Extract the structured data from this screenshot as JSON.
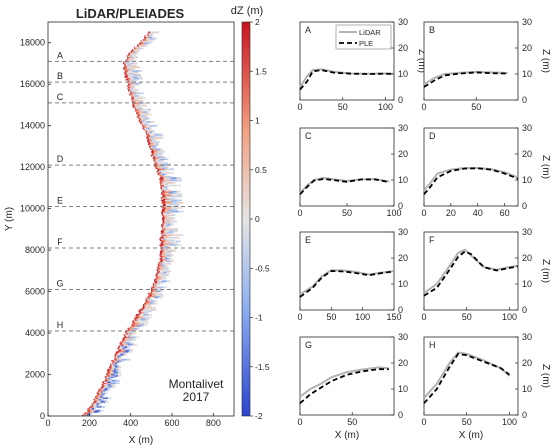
{
  "figure": {
    "title": "LiDAR/PLEIADES",
    "site_label": "Montalivet",
    "year_label": "2017"
  },
  "chart_data": [
    {
      "id": "map",
      "type": "heatmap",
      "title": "LiDAR/PLEIADES",
      "xlabel": "X (m)",
      "ylabel": "Y (m)",
      "xlim": [
        0,
        900
      ],
      "ylim": [
        0,
        19000
      ],
      "xticks": [
        0,
        200,
        400,
        600,
        800
      ],
      "yticks": [
        0,
        2000,
        4000,
        6000,
        8000,
        10000,
        12000,
        14000,
        16000,
        18000
      ],
      "colorbar": {
        "label": "dZ (m)",
        "range": [
          -2,
          2
        ],
        "ticks": [
          -2,
          -1.5,
          -1,
          -0.5,
          0,
          0.5,
          1,
          1.5,
          2
        ],
        "colors": [
          "#2b45cf",
          "#8fb1f0",
          "#e4e4e4",
          "#f2a384",
          "#c9131f"
        ]
      },
      "shoreline_x": [
        [
          0,
          170
        ],
        [
          500,
          210
        ],
        [
          1000,
          235
        ],
        [
          1500,
          260
        ],
        [
          2000,
          285
        ],
        [
          2500,
          305
        ],
        [
          3000,
          330
        ],
        [
          3500,
          350
        ],
        [
          4000,
          375
        ],
        [
          4500,
          410
        ],
        [
          5000,
          440
        ],
        [
          5500,
          470
        ],
        [
          6000,
          495
        ],
        [
          6500,
          515
        ],
        [
          7000,
          530
        ],
        [
          7500,
          540
        ],
        [
          8000,
          545
        ],
        [
          8500,
          545
        ],
        [
          9000,
          550
        ],
        [
          9500,
          550
        ],
        [
          10000,
          552
        ],
        [
          10500,
          552
        ],
        [
          11000,
          548
        ],
        [
          11500,
          540
        ],
        [
          12000,
          520
        ],
        [
          12500,
          505
        ],
        [
          13000,
          490
        ],
        [
          13500,
          475
        ],
        [
          14000,
          455
        ],
        [
          14500,
          430
        ],
        [
          15000,
          410
        ],
        [
          15500,
          395
        ],
        [
          16000,
          385
        ],
        [
          16500,
          370
        ],
        [
          17000,
          365
        ],
        [
          17500,
          395
        ],
        [
          18000,
          445
        ],
        [
          18500,
          485
        ]
      ],
      "profile_lines": [
        {
          "label": "A",
          "y": 17100
        },
        {
          "label": "B",
          "y": 16100
        },
        {
          "label": "C",
          "y": 15100
        },
        {
          "label": "D",
          "y": 12100
        },
        {
          "label": "E",
          "y": 10100
        },
        {
          "label": "F",
          "y": 8100
        },
        {
          "label": "G",
          "y": 6100
        },
        {
          "label": "H",
          "y": 4100
        }
      ]
    },
    {
      "id": "A",
      "type": "line",
      "title": "A",
      "xlabel": "",
      "ylabel": "Z (m)",
      "xlim": [
        0,
        110
      ],
      "ylim": [
        0,
        30
      ],
      "xticks": [
        0,
        50,
        100
      ],
      "yticks": [
        0,
        10,
        20,
        30
      ],
      "legend": "top-right",
      "series": [
        {
          "name": "LiDAR",
          "values": [
            [
              0,
              5
            ],
            [
              8,
              9
            ],
            [
              15,
              11.5
            ],
            [
              25,
              11.8
            ],
            [
              40,
              10.8
            ],
            [
              60,
              10.2
            ],
            [
              80,
              10.1
            ],
            [
              100,
              10.2
            ],
            [
              110,
              10.1
            ]
          ]
        },
        {
          "name": "PLE",
          "values": [
            [
              0,
              4
            ],
            [
              8,
              7
            ],
            [
              15,
              11
            ],
            [
              25,
              11.5
            ],
            [
              40,
              10.5
            ],
            [
              60,
              10.1
            ],
            [
              80,
              10
            ],
            [
              100,
              10.1
            ],
            [
              110,
              10
            ]
          ]
        }
      ]
    },
    {
      "id": "B",
      "type": "line",
      "title": "B",
      "xlabel": "",
      "ylabel": "Z (m)",
      "xlim": [
        0,
        90
      ],
      "ylim": [
        0,
        30
      ],
      "xticks": [
        0,
        50
      ],
      "yticks": [
        0,
        10,
        20,
        30
      ],
      "series": [
        {
          "name": "LiDAR",
          "values": [
            [
              0,
              6
            ],
            [
              10,
              8.5
            ],
            [
              20,
              10
            ],
            [
              35,
              10.5
            ],
            [
              50,
              10.8
            ],
            [
              65,
              10.6
            ],
            [
              80,
              10.4
            ]
          ]
        },
        {
          "name": "PLE",
          "values": [
            [
              0,
              5
            ],
            [
              10,
              7.5
            ],
            [
              20,
              9.5
            ],
            [
              35,
              10.2
            ],
            [
              50,
              10.6
            ],
            [
              65,
              10.3
            ],
            [
              80,
              10.2
            ]
          ]
        }
      ]
    },
    {
      "id": "C",
      "type": "line",
      "title": "C",
      "xlabel": "",
      "ylabel": "",
      "xlim": [
        0,
        100
      ],
      "ylim": [
        0,
        30
      ],
      "xticks": [
        0,
        50,
        100
      ],
      "yticks": [
        0,
        10,
        20,
        30
      ],
      "series": [
        {
          "name": "LiDAR",
          "values": [
            [
              0,
              5
            ],
            [
              8,
              8
            ],
            [
              15,
              10
            ],
            [
              25,
              10.8
            ],
            [
              35,
              10.3
            ],
            [
              50,
              9.6
            ],
            [
              65,
              10.3
            ],
            [
              80,
              10.4
            ],
            [
              95,
              9.4
            ]
          ]
        },
        {
          "name": "PLE",
          "values": [
            [
              0,
              4.5
            ],
            [
              8,
              7.5
            ],
            [
              15,
              9.8
            ],
            [
              25,
              10.4
            ],
            [
              35,
              10
            ],
            [
              50,
              9.3
            ],
            [
              65,
              10.2
            ],
            [
              80,
              10.2
            ],
            [
              95,
              9.2
            ]
          ]
        }
      ]
    },
    {
      "id": "D",
      "type": "line",
      "title": "D",
      "xlabel": "",
      "ylabel": "Z (m)",
      "xlim": [
        0,
        70
      ],
      "ylim": [
        0,
        30
      ],
      "xticks": [
        0,
        20,
        40,
        60
      ],
      "yticks": [
        0,
        10,
        20,
        30
      ],
      "series": [
        {
          "name": "LiDAR",
          "values": [
            [
              0,
              6
            ],
            [
              5,
              9
            ],
            [
              10,
              12.5
            ],
            [
              20,
              14
            ],
            [
              30,
              14.6
            ],
            [
              40,
              14.6
            ],
            [
              50,
              14.2
            ],
            [
              60,
              13
            ],
            [
              70,
              11
            ]
          ]
        },
        {
          "name": "PLE",
          "values": [
            [
              0,
              4.5
            ],
            [
              5,
              7.5
            ],
            [
              10,
              11
            ],
            [
              20,
              13.5
            ],
            [
              30,
              14.4
            ],
            [
              40,
              14.5
            ],
            [
              50,
              14
            ],
            [
              60,
              12.5
            ],
            [
              70,
              10.5
            ]
          ]
        }
      ]
    },
    {
      "id": "E",
      "type": "line",
      "title": "E",
      "xlabel": "",
      "ylabel": "",
      "xlim": [
        0,
        150
      ],
      "ylim": [
        0,
        30
      ],
      "xticks": [
        0,
        50,
        100,
        150
      ],
      "yticks": [
        0,
        10,
        20,
        30
      ],
      "series": [
        {
          "name": "LiDAR",
          "values": [
            [
              0,
              6
            ],
            [
              20,
              9
            ],
            [
              35,
              13
            ],
            [
              50,
              15.3
            ],
            [
              70,
              15.2
            ],
            [
              90,
              14.6
            ],
            [
              110,
              13.6
            ],
            [
              130,
              14.4
            ],
            [
              150,
              15
            ]
          ]
        },
        {
          "name": "PLE",
          "values": [
            [
              0,
              5
            ],
            [
              20,
              8.5
            ],
            [
              35,
              12.5
            ],
            [
              50,
              15
            ],
            [
              70,
              14.8
            ],
            [
              90,
              14.2
            ],
            [
              110,
              13.4
            ],
            [
              130,
              14.2
            ],
            [
              150,
              14.8
            ]
          ]
        }
      ]
    },
    {
      "id": "F",
      "type": "line",
      "title": "F",
      "xlabel": "",
      "ylabel": "Z (m)",
      "xlim": [
        0,
        110
      ],
      "ylim": [
        0,
        30
      ],
      "xticks": [
        0,
        50,
        100
      ],
      "yticks": [
        0,
        10,
        20,
        30
      ],
      "series": [
        {
          "name": "LiDAR",
          "values": [
            [
              0,
              6.5
            ],
            [
              15,
              10
            ],
            [
              30,
              17
            ],
            [
              40,
              22
            ],
            [
              48,
              23.2
            ],
            [
              55,
              21
            ],
            [
              70,
              16.5
            ],
            [
              85,
              15.5
            ],
            [
              100,
              16.5
            ],
            [
              110,
              17
            ]
          ]
        },
        {
          "name": "PLE",
          "values": [
            [
              0,
              5.5
            ],
            [
              15,
              8.5
            ],
            [
              30,
              15.5
            ],
            [
              40,
              20.5
            ],
            [
              48,
              22.5
            ],
            [
              55,
              21.5
            ],
            [
              70,
              16.5
            ],
            [
              85,
              15.2
            ],
            [
              100,
              16.2
            ],
            [
              110,
              16.8
            ]
          ]
        }
      ]
    },
    {
      "id": "G",
      "type": "line",
      "title": "G",
      "xlabel": "X (m)",
      "ylabel": "",
      "xlim": [
        0,
        90
      ],
      "ylim": [
        0,
        30
      ],
      "xticks": [
        0,
        50
      ],
      "yticks": [
        0,
        10,
        20,
        30
      ],
      "series": [
        {
          "name": "LiDAR",
          "values": [
            [
              0,
              7
            ],
            [
              10,
              10
            ],
            [
              20,
              12
            ],
            [
              30,
              14.5
            ],
            [
              45,
              16.5
            ],
            [
              60,
              17.5
            ],
            [
              75,
              18.3
            ],
            [
              85,
              18
            ]
          ]
        },
        {
          "name": "PLE",
          "values": [
            [
              0,
              4.5
            ],
            [
              10,
              8
            ],
            [
              20,
              10.5
            ],
            [
              30,
              13
            ],
            [
              45,
              15.5
            ],
            [
              60,
              16.8
            ],
            [
              75,
              17.6
            ],
            [
              85,
              17.6
            ]
          ]
        }
      ]
    },
    {
      "id": "H",
      "type": "line",
      "title": "H",
      "xlabel": "X (m)",
      "ylabel": "Z (m)",
      "xlim": [
        0,
        110
      ],
      "ylim": [
        0,
        30
      ],
      "xticks": [
        0,
        50,
        100
      ],
      "yticks": [
        0,
        10,
        20,
        30
      ],
      "series": [
        {
          "name": "LiDAR",
          "values": [
            [
              0,
              6.5
            ],
            [
              15,
              12
            ],
            [
              30,
              20
            ],
            [
              40,
              24
            ],
            [
              50,
              23.5
            ],
            [
              70,
              21
            ],
            [
              90,
              18
            ],
            [
              100,
              15
            ]
          ]
        },
        {
          "name": "PLE",
          "values": [
            [
              0,
              4.5
            ],
            [
              15,
              10
            ],
            [
              30,
              18.5
            ],
            [
              40,
              23.5
            ],
            [
              50,
              23
            ],
            [
              70,
              20.5
            ],
            [
              90,
              18
            ],
            [
              100,
              15.5
            ]
          ]
        }
      ]
    }
  ]
}
